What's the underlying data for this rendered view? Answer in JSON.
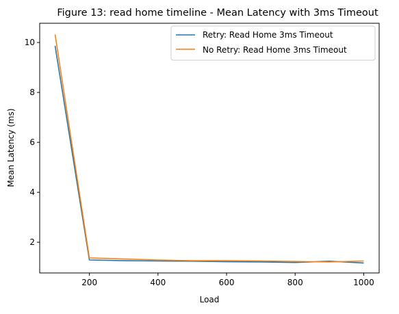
{
  "chart_data": {
    "type": "line",
    "title": "Figure 13: read home timeline - Mean Latency with 3ms Timeout",
    "xlabel": "Load",
    "ylabel": "Mean Latency (ms)",
    "xlim": [
      55,
      1045
    ],
    "ylim": [
      0.77,
      10.77
    ],
    "xticks": [
      200,
      400,
      600,
      800,
      1000
    ],
    "yticks": [
      2,
      4,
      6,
      8,
      10
    ],
    "x": [
      100,
      200,
      300,
      400,
      500,
      600,
      700,
      800,
      900,
      1000
    ],
    "legend_position": "upper right",
    "grid": false,
    "series": [
      {
        "name": "Retry: Read Home 3ms Timeout",
        "color": "#1f77b4",
        "values": [
          9.87,
          1.29,
          1.26,
          1.25,
          1.24,
          1.22,
          1.21,
          1.19,
          1.24,
          1.17
        ]
      },
      {
        "name": "No Retry: Read Home 3ms Timeout",
        "color": "#ff7f0e",
        "values": [
          10.32,
          1.37,
          1.33,
          1.29,
          1.26,
          1.26,
          1.25,
          1.23,
          1.21,
          1.25
        ]
      }
    ]
  }
}
